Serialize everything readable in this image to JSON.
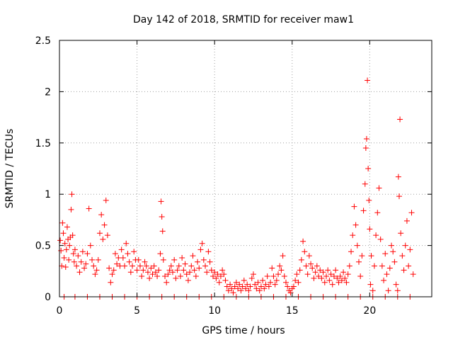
{
  "chart_data": {
    "type": "scatter",
    "title": "Day 142 of 2018, SRMTID for receiver maw1",
    "xlabel": "GPS time / hours",
    "ylabel": "SRMTID / TECUs",
    "xlim": [
      0,
      24
    ],
    "ylim": [
      0,
      2.5
    ],
    "grid": true,
    "legend": "none",
    "marker": "+",
    "series_color": "#ff0000",
    "x_ticks": [
      0,
      5,
      10,
      15,
      20
    ],
    "x_tick_labels": [
      "0",
      "5",
      "10",
      "15",
      "20"
    ],
    "y_ticks": [
      0,
      0.5,
      1,
      1.5,
      2,
      2.5
    ],
    "y_tick_labels": [
      "0",
      "0.5",
      "1",
      "1.5",
      "2",
      "2.5"
    ],
    "series": [
      {
        "name": "SRMTID",
        "points": [
          [
            0.05,
            0.55
          ],
          [
            0.1,
            0.45
          ],
          [
            0.15,
            0.3
          ],
          [
            0.2,
            0.72
          ],
          [
            0.25,
            0.62
          ],
          [
            0.3,
            0.38
          ],
          [
            0.35,
            0.52
          ],
          [
            0.4,
            0.29
          ],
          [
            0.45,
            0.46
          ],
          [
            0.5,
            0.68
          ],
          [
            0.55,
            0.56
          ],
          [
            0.6,
            0.36
          ],
          [
            0.65,
            0.5
          ],
          [
            0.7,
            0.58
          ],
          [
            0.75,
            0.85
          ],
          [
            0.8,
            1.0
          ],
          [
            0.85,
            0.6
          ],
          [
            0.9,
            0.42
          ],
          [
            0.95,
            0.34
          ],
          [
            1.0,
            0.46
          ],
          [
            1.1,
            0.3
          ],
          [
            1.2,
            0.4
          ],
          [
            1.3,
            0.24
          ],
          [
            1.4,
            0.34
          ],
          [
            1.5,
            0.44
          ],
          [
            1.6,
            0.28
          ],
          [
            1.7,
            0.32
          ],
          [
            1.8,
            0.42
          ],
          [
            1.9,
            0.86
          ],
          [
            2.0,
            0.5
          ],
          [
            2.1,
            0.36
          ],
          [
            2.2,
            0.3
          ],
          [
            2.3,
            0.22
          ],
          [
            2.4,
            0.26
          ],
          [
            2.5,
            0.36
          ],
          [
            2.6,
            0.62
          ],
          [
            2.7,
            0.8
          ],
          [
            2.8,
            0.56
          ],
          [
            2.9,
            0.7
          ],
          [
            3.0,
            0.94
          ],
          [
            3.1,
            0.6
          ],
          [
            3.2,
            0.28
          ],
          [
            3.3,
            0.14
          ],
          [
            3.4,
            0.22
          ],
          [
            3.5,
            0.26
          ],
          [
            3.6,
            0.42
          ],
          [
            3.7,
            0.32
          ],
          [
            3.8,
            0.38
          ],
          [
            3.9,
            0.3
          ],
          [
            4.0,
            0.46
          ],
          [
            4.1,
            0.38
          ],
          [
            4.2,
            0.3
          ],
          [
            4.3,
            0.52
          ],
          [
            4.4,
            0.42
          ],
          [
            4.5,
            0.34
          ],
          [
            4.6,
            0.24
          ],
          [
            4.7,
            0.3
          ],
          [
            4.8,
            0.44
          ],
          [
            4.9,
            0.36
          ],
          [
            5.0,
            0.26
          ],
          [
            5.1,
            0.36
          ],
          [
            5.2,
            0.3
          ],
          [
            5.3,
            0.2
          ],
          [
            5.4,
            0.26
          ],
          [
            5.5,
            0.34
          ],
          [
            5.6,
            0.3
          ],
          [
            5.7,
            0.24
          ],
          [
            5.8,
            0.18
          ],
          [
            5.9,
            0.28
          ],
          [
            6.0,
            0.22
          ],
          [
            6.1,
            0.3
          ],
          [
            6.2,
            0.24
          ],
          [
            6.3,
            0.2
          ],
          [
            6.4,
            0.26
          ],
          [
            6.5,
            0.42
          ],
          [
            6.55,
            0.93
          ],
          [
            6.6,
            0.78
          ],
          [
            6.65,
            0.64
          ],
          [
            6.7,
            0.36
          ],
          [
            6.8,
            0.2
          ],
          [
            6.9,
            0.14
          ],
          [
            7.0,
            0.22
          ],
          [
            7.1,
            0.26
          ],
          [
            7.2,
            0.3
          ],
          [
            7.3,
            0.24
          ],
          [
            7.4,
            0.36
          ],
          [
            7.5,
            0.18
          ],
          [
            7.6,
            0.26
          ],
          [
            7.7,
            0.3
          ],
          [
            7.8,
            0.2
          ],
          [
            7.9,
            0.38
          ],
          [
            8.0,
            0.26
          ],
          [
            8.1,
            0.32
          ],
          [
            8.2,
            0.22
          ],
          [
            8.3,
            0.16
          ],
          [
            8.4,
            0.24
          ],
          [
            8.5,
            0.3
          ],
          [
            8.6,
            0.4
          ],
          [
            8.7,
            0.26
          ],
          [
            8.8,
            0.2
          ],
          [
            8.9,
            0.34
          ],
          [
            9.0,
            0.28
          ],
          [
            9.1,
            0.46
          ],
          [
            9.2,
            0.52
          ],
          [
            9.3,
            0.36
          ],
          [
            9.4,
            0.3
          ],
          [
            9.5,
            0.24
          ],
          [
            9.6,
            0.44
          ],
          [
            9.7,
            0.34
          ],
          [
            9.8,
            0.26
          ],
          [
            9.9,
            0.2
          ],
          [
            10.0,
            0.24
          ],
          [
            10.1,
            0.18
          ],
          [
            10.2,
            0.22
          ],
          [
            10.3,
            0.14
          ],
          [
            10.4,
            0.2
          ],
          [
            10.5,
            0.26
          ],
          [
            10.6,
            0.22
          ],
          [
            10.7,
            0.16
          ],
          [
            10.8,
            0.1
          ],
          [
            10.9,
            0.06
          ],
          [
            11.0,
            0.12
          ],
          [
            11.1,
            0.08
          ],
          [
            11.2,
            0.04
          ],
          [
            11.3,
            0.1
          ],
          [
            11.4,
            0.14
          ],
          [
            11.5,
            0.08
          ],
          [
            11.6,
            0.12
          ],
          [
            11.7,
            0.06
          ],
          [
            11.8,
            0.1
          ],
          [
            11.9,
            0.16
          ],
          [
            12.0,
            0.08
          ],
          [
            12.1,
            0.12
          ],
          [
            12.2,
            0.06
          ],
          [
            12.3,
            0.1
          ],
          [
            12.4,
            0.18
          ],
          [
            12.5,
            0.22
          ],
          [
            12.6,
            0.12
          ],
          [
            12.7,
            0.08
          ],
          [
            12.8,
            0.14
          ],
          [
            12.9,
            0.06
          ],
          [
            13.0,
            0.1
          ],
          [
            13.1,
            0.16
          ],
          [
            13.2,
            0.08
          ],
          [
            13.3,
            0.12
          ],
          [
            13.4,
            0.2
          ],
          [
            13.5,
            0.1
          ],
          [
            13.6,
            0.14
          ],
          [
            13.7,
            0.28
          ],
          [
            13.8,
            0.2
          ],
          [
            13.9,
            0.12
          ],
          [
            14.0,
            0.16
          ],
          [
            14.1,
            0.22
          ],
          [
            14.2,
            0.3
          ],
          [
            14.3,
            0.26
          ],
          [
            14.4,
            0.4
          ],
          [
            14.5,
            0.2
          ],
          [
            14.6,
            0.14
          ],
          [
            14.7,
            0.1
          ],
          [
            14.8,
            0.06
          ],
          [
            14.9,
            0.04
          ],
          [
            15.0,
            0.08
          ],
          [
            15.1,
            0.1
          ],
          [
            15.2,
            0.16
          ],
          [
            15.3,
            0.22
          ],
          [
            15.4,
            0.14
          ],
          [
            15.5,
            0.26
          ],
          [
            15.6,
            0.36
          ],
          [
            15.7,
            0.54
          ],
          [
            15.8,
            0.44
          ],
          [
            15.9,
            0.3
          ],
          [
            16.0,
            0.22
          ],
          [
            16.1,
            0.4
          ],
          [
            16.2,
            0.32
          ],
          [
            16.3,
            0.28
          ],
          [
            16.4,
            0.18
          ],
          [
            16.5,
            0.24
          ],
          [
            16.6,
            0.3
          ],
          [
            16.7,
            0.2
          ],
          [
            16.8,
            0.26
          ],
          [
            16.9,
            0.18
          ],
          [
            17.0,
            0.24
          ],
          [
            17.1,
            0.14
          ],
          [
            17.2,
            0.2
          ],
          [
            17.3,
            0.26
          ],
          [
            17.4,
            0.16
          ],
          [
            17.5,
            0.22
          ],
          [
            17.6,
            0.12
          ],
          [
            17.7,
            0.2
          ],
          [
            17.8,
            0.26
          ],
          [
            17.9,
            0.18
          ],
          [
            18.0,
            0.14
          ],
          [
            18.1,
            0.2
          ],
          [
            18.2,
            0.16
          ],
          [
            18.3,
            0.24
          ],
          [
            18.4,
            0.18
          ],
          [
            18.5,
            0.14
          ],
          [
            18.6,
            0.22
          ],
          [
            18.7,
            0.3
          ],
          [
            18.8,
            0.44
          ],
          [
            18.9,
            0.6
          ],
          [
            19.0,
            0.88
          ],
          [
            19.1,
            0.7
          ],
          [
            19.2,
            0.5
          ],
          [
            19.3,
            0.34
          ],
          [
            19.4,
            0.2
          ],
          [
            19.5,
            0.4
          ],
          [
            19.6,
            0.84
          ],
          [
            19.7,
            1.1
          ],
          [
            19.75,
            1.45
          ],
          [
            19.8,
            1.54
          ],
          [
            19.85,
            2.11
          ],
          [
            19.9,
            1.25
          ],
          [
            19.95,
            0.94
          ],
          [
            20.0,
            0.66
          ],
          [
            20.05,
            0.12
          ],
          [
            20.1,
            0.4
          ],
          [
            20.2,
            0.06
          ],
          [
            20.3,
            0.3
          ],
          [
            20.4,
            0.6
          ],
          [
            20.5,
            0.82
          ],
          [
            20.6,
            1.06
          ],
          [
            20.7,
            0.56
          ],
          [
            20.8,
            0.3
          ],
          [
            20.9,
            0.16
          ],
          [
            21.0,
            0.42
          ],
          [
            21.1,
            0.22
          ],
          [
            21.2,
            0.06
          ],
          [
            21.3,
            0.28
          ],
          [
            21.4,
            0.5
          ],
          [
            21.5,
            0.44
          ],
          [
            21.6,
            0.34
          ],
          [
            21.7,
            0.12
          ],
          [
            21.8,
            0.06
          ],
          [
            21.85,
            1.17
          ],
          [
            21.9,
            0.98
          ],
          [
            21.95,
            1.73
          ],
          [
            22.0,
            0.62
          ],
          [
            22.1,
            0.4
          ],
          [
            22.2,
            0.26
          ],
          [
            22.3,
            0.5
          ],
          [
            22.4,
            0.74
          ],
          [
            22.5,
            0.3
          ],
          [
            22.6,
            0.46
          ],
          [
            22.7,
            0.82
          ],
          [
            22.8,
            0.22
          ],
          [
            0.3,
            0.0
          ],
          [
            1.0,
            0.0
          ],
          [
            1.8,
            0.0
          ],
          [
            2.6,
            0.0
          ],
          [
            3.4,
            0.0
          ],
          [
            4.2,
            0.0
          ],
          [
            5.0,
            0.0
          ],
          [
            5.8,
            0.0
          ],
          [
            6.6,
            0.0
          ],
          [
            7.4,
            0.0
          ],
          [
            8.2,
            0.0
          ],
          [
            9.0,
            0.0
          ],
          [
            9.8,
            0.0
          ],
          [
            10.6,
            0.0
          ],
          [
            11.4,
            0.0
          ],
          [
            12.2,
            0.0
          ],
          [
            13.0,
            0.0
          ],
          [
            13.8,
            0.0
          ],
          [
            14.6,
            0.0
          ],
          [
            15.4,
            0.0
          ],
          [
            16.2,
            0.0
          ],
          [
            17.0,
            0.0
          ],
          [
            17.8,
            0.0
          ],
          [
            18.6,
            0.0
          ],
          [
            19.4,
            0.0
          ],
          [
            20.2,
            0.0
          ],
          [
            21.0,
            0.0
          ],
          [
            21.8,
            0.0
          ],
          [
            22.6,
            0.0
          ]
        ]
      }
    ]
  }
}
